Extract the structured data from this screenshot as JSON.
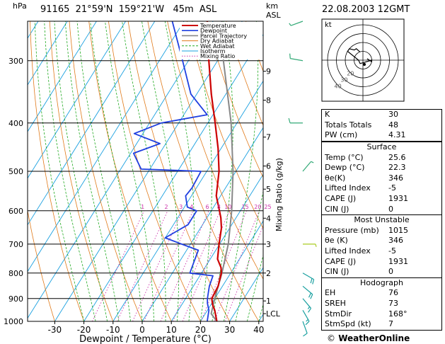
{
  "header": {
    "station": "91165  21°59'N  159°21'W   45m  ASL",
    "datetime": "22.08.2003  12GMT",
    "hpa_unit": "hPa",
    "km_unit": "km",
    "asl_unit": "ASL"
  },
  "legend": [
    "Temperature",
    "Dewpoint",
    "Parcel Trajectory",
    "Dry Adiabat",
    "Wet Adiabat",
    "Isotherm",
    "Mixing Ratio"
  ],
  "mixing_ratio_axis_label": "Mixing Ratio (g/kg)",
  "mixing_ratio_labels": [
    "1",
    "2",
    "3",
    "4",
    "6",
    "8",
    "10",
    "15",
    "20",
    "25"
  ],
  "hodograph": {
    "label": "kt",
    "ring_labels": [
      "20",
      "30",
      "40"
    ]
  },
  "indices": {
    "rows": [
      {
        "label": "K",
        "value": "30"
      },
      {
        "label": "Totals Totals",
        "value": "48"
      },
      {
        "label": "PW (cm)",
        "value": "4.31"
      }
    ]
  },
  "surface": {
    "title": "Surface",
    "rows": [
      {
        "label": "Temp (°C)",
        "value": "25.6"
      },
      {
        "label": "Dewp (°C)",
        "value": "22.3"
      },
      {
        "label": "θe(K)",
        "value": "346"
      },
      {
        "label": "Lifted Index",
        "value": "-5"
      },
      {
        "label": "CAPE (J)",
        "value": "1931"
      },
      {
        "label": "CIN (J)",
        "value": "0"
      }
    ]
  },
  "most_unstable": {
    "title": "Most Unstable",
    "rows": [
      {
        "label": "Pressure (mb)",
        "value": "1015"
      },
      {
        "label": "θe (K)",
        "value": "346"
      },
      {
        "label": "Lifted Index",
        "value": "-5"
      },
      {
        "label": "CAPE (J)",
        "value": "1931"
      },
      {
        "label": "CIN (J)",
        "value": "0"
      }
    ]
  },
  "hodograph_table": {
    "title": "Hodograph",
    "rows": [
      {
        "label": "EH",
        "value": "76"
      },
      {
        "label": "SREH",
        "value": "73"
      },
      {
        "label": "StmDir",
        "value": "168°"
      },
      {
        "label": "StmSpd (kt)",
        "value": "7"
      }
    ]
  },
  "credit": {
    "symbol": "©",
    "text": "WeatherOnline"
  },
  "chart_data": {
    "type": "line",
    "xlabel": "Dewpoint / Temperature (°C)",
    "ylabel_left": "hPa",
    "ylabel_right": "Mixing Ratio (g/kg)",
    "xlim": [
      -35,
      40
    ],
    "plim": [
      1000,
      250
    ],
    "x_ticks": [
      -30,
      -20,
      -10,
      0,
      10,
      20,
      30,
      40
    ],
    "p_ticks": [
      300,
      400,
      500,
      600,
      700,
      800,
      900,
      1000
    ],
    "km_ticks": [
      {
        "label": "9",
        "p": 315
      },
      {
        "label": "8",
        "p": 360
      },
      {
        "label": "7",
        "p": 427
      },
      {
        "label": "6",
        "p": 488
      },
      {
        "label": "5",
        "p": 543
      },
      {
        "label": "4",
        "p": 621
      },
      {
        "label": "3",
        "p": 700
      },
      {
        "label": "2",
        "p": 800
      },
      {
        "label": "1",
        "p": 910
      },
      {
        "label": "LCL",
        "p": 965
      }
    ],
    "colors": {
      "temperature": "#cc0000",
      "dewpoint": "#1f3fe0",
      "parcel": "#888888",
      "dry_adiabat": "#e07a1a",
      "wet_adiabat": "#22aa22",
      "isotherm": "#1aa0e0",
      "mixing_ratio": "#cc33aa"
    },
    "series": [
      {
        "name": "Temperature",
        "points": [
          {
            "p": 1000,
            "t": 25.6
          },
          {
            "p": 950,
            "t": 22.5
          },
          {
            "p": 925,
            "t": 20.5
          },
          {
            "p": 900,
            "t": 19.0
          },
          {
            "p": 850,
            "t": 18.5
          },
          {
            "p": 820,
            "t": 17.5
          },
          {
            "p": 800,
            "t": 16.8
          },
          {
            "p": 780,
            "t": 15.5
          },
          {
            "p": 750,
            "t": 12.5
          },
          {
            "p": 700,
            "t": 9.8
          },
          {
            "p": 650,
            "t": 7.2
          },
          {
            "p": 620,
            "t": 4.8
          },
          {
            "p": 600,
            "t": 2.8
          },
          {
            "p": 560,
            "t": -1.5
          },
          {
            "p": 500,
            "t": -5.8
          },
          {
            "p": 450,
            "t": -11.0
          },
          {
            "p": 400,
            "t": -17.5
          },
          {
            "p": 350,
            "t": -25.0
          },
          {
            "p": 300,
            "t": -33.0
          },
          {
            "p": 250,
            "t": -42.0
          }
        ]
      },
      {
        "name": "Dewpoint",
        "points": [
          {
            "p": 1000,
            "t": 22.3
          },
          {
            "p": 950,
            "t": 20.5
          },
          {
            "p": 920,
            "t": 18.5
          },
          {
            "p": 900,
            "t": 17.5
          },
          {
            "p": 850,
            "t": 15.5
          },
          {
            "p": 810,
            "t": 14.5
          },
          {
            "p": 800,
            "t": 6.0
          },
          {
            "p": 780,
            "t": 5.5
          },
          {
            "p": 720,
            "t": 4.0
          },
          {
            "p": 700,
            "t": -3.0
          },
          {
            "p": 680,
            "t": -10.0
          },
          {
            "p": 640,
            "t": -5.0
          },
          {
            "p": 600,
            "t": -5.0
          },
          {
            "p": 590,
            "t": -9.0
          },
          {
            "p": 560,
            "t": -12.0
          },
          {
            "p": 540,
            "t": -11.5
          },
          {
            "p": 500,
            "t": -12.0
          },
          {
            "p": 495,
            "t": -33.0
          },
          {
            "p": 460,
            "t": -39.0
          },
          {
            "p": 440,
            "t": -32.0
          },
          {
            "p": 420,
            "t": -43.0
          },
          {
            "p": 400,
            "t": -36.0
          },
          {
            "p": 385,
            "t": -22.0
          },
          {
            "p": 350,
            "t": -32.0
          },
          {
            "p": 300,
            "t": -42.0
          },
          {
            "p": 250,
            "t": -54.0
          }
        ]
      },
      {
        "name": "Parcel Trajectory",
        "points": [
          {
            "p": 1000,
            "t": 25.6
          },
          {
            "p": 965,
            "t": 22.0
          },
          {
            "p": 900,
            "t": 20.0
          },
          {
            "p": 800,
            "t": 17.0
          },
          {
            "p": 700,
            "t": 13.0
          },
          {
            "p": 600,
            "t": 7.0
          },
          {
            "p": 500,
            "t": -1.0
          },
          {
            "p": 400,
            "t": -12.0
          },
          {
            "p": 300,
            "t": -28.0
          },
          {
            "p": 250,
            "t": -37.0
          }
        ]
      }
    ],
    "mixing_ratio_values": [
      1,
      2,
      3,
      4,
      6,
      8,
      10,
      15,
      20,
      25
    ],
    "wind_barbs": [
      {
        "p": 1000,
        "dir": 160,
        "spd": 10
      },
      {
        "p": 950,
        "dir": 150,
        "spd": 15
      },
      {
        "p": 900,
        "dir": 140,
        "spd": 15
      },
      {
        "p": 850,
        "dir": 130,
        "spd": 20
      },
      {
        "p": 800,
        "dir": 120,
        "spd": 20
      },
      {
        "p": 700,
        "dir": 90,
        "spd": 5
      },
      {
        "p": 500,
        "dir": 40,
        "spd": 5
      },
      {
        "p": 400,
        "dir": 270,
        "spd": 10
      },
      {
        "p": 300,
        "dir": 280,
        "spd": 10
      },
      {
        "p": 250,
        "dir": 250,
        "spd": 5
      }
    ],
    "hodograph_rings_kt": [
      10,
      20,
      30,
      40
    ]
  }
}
